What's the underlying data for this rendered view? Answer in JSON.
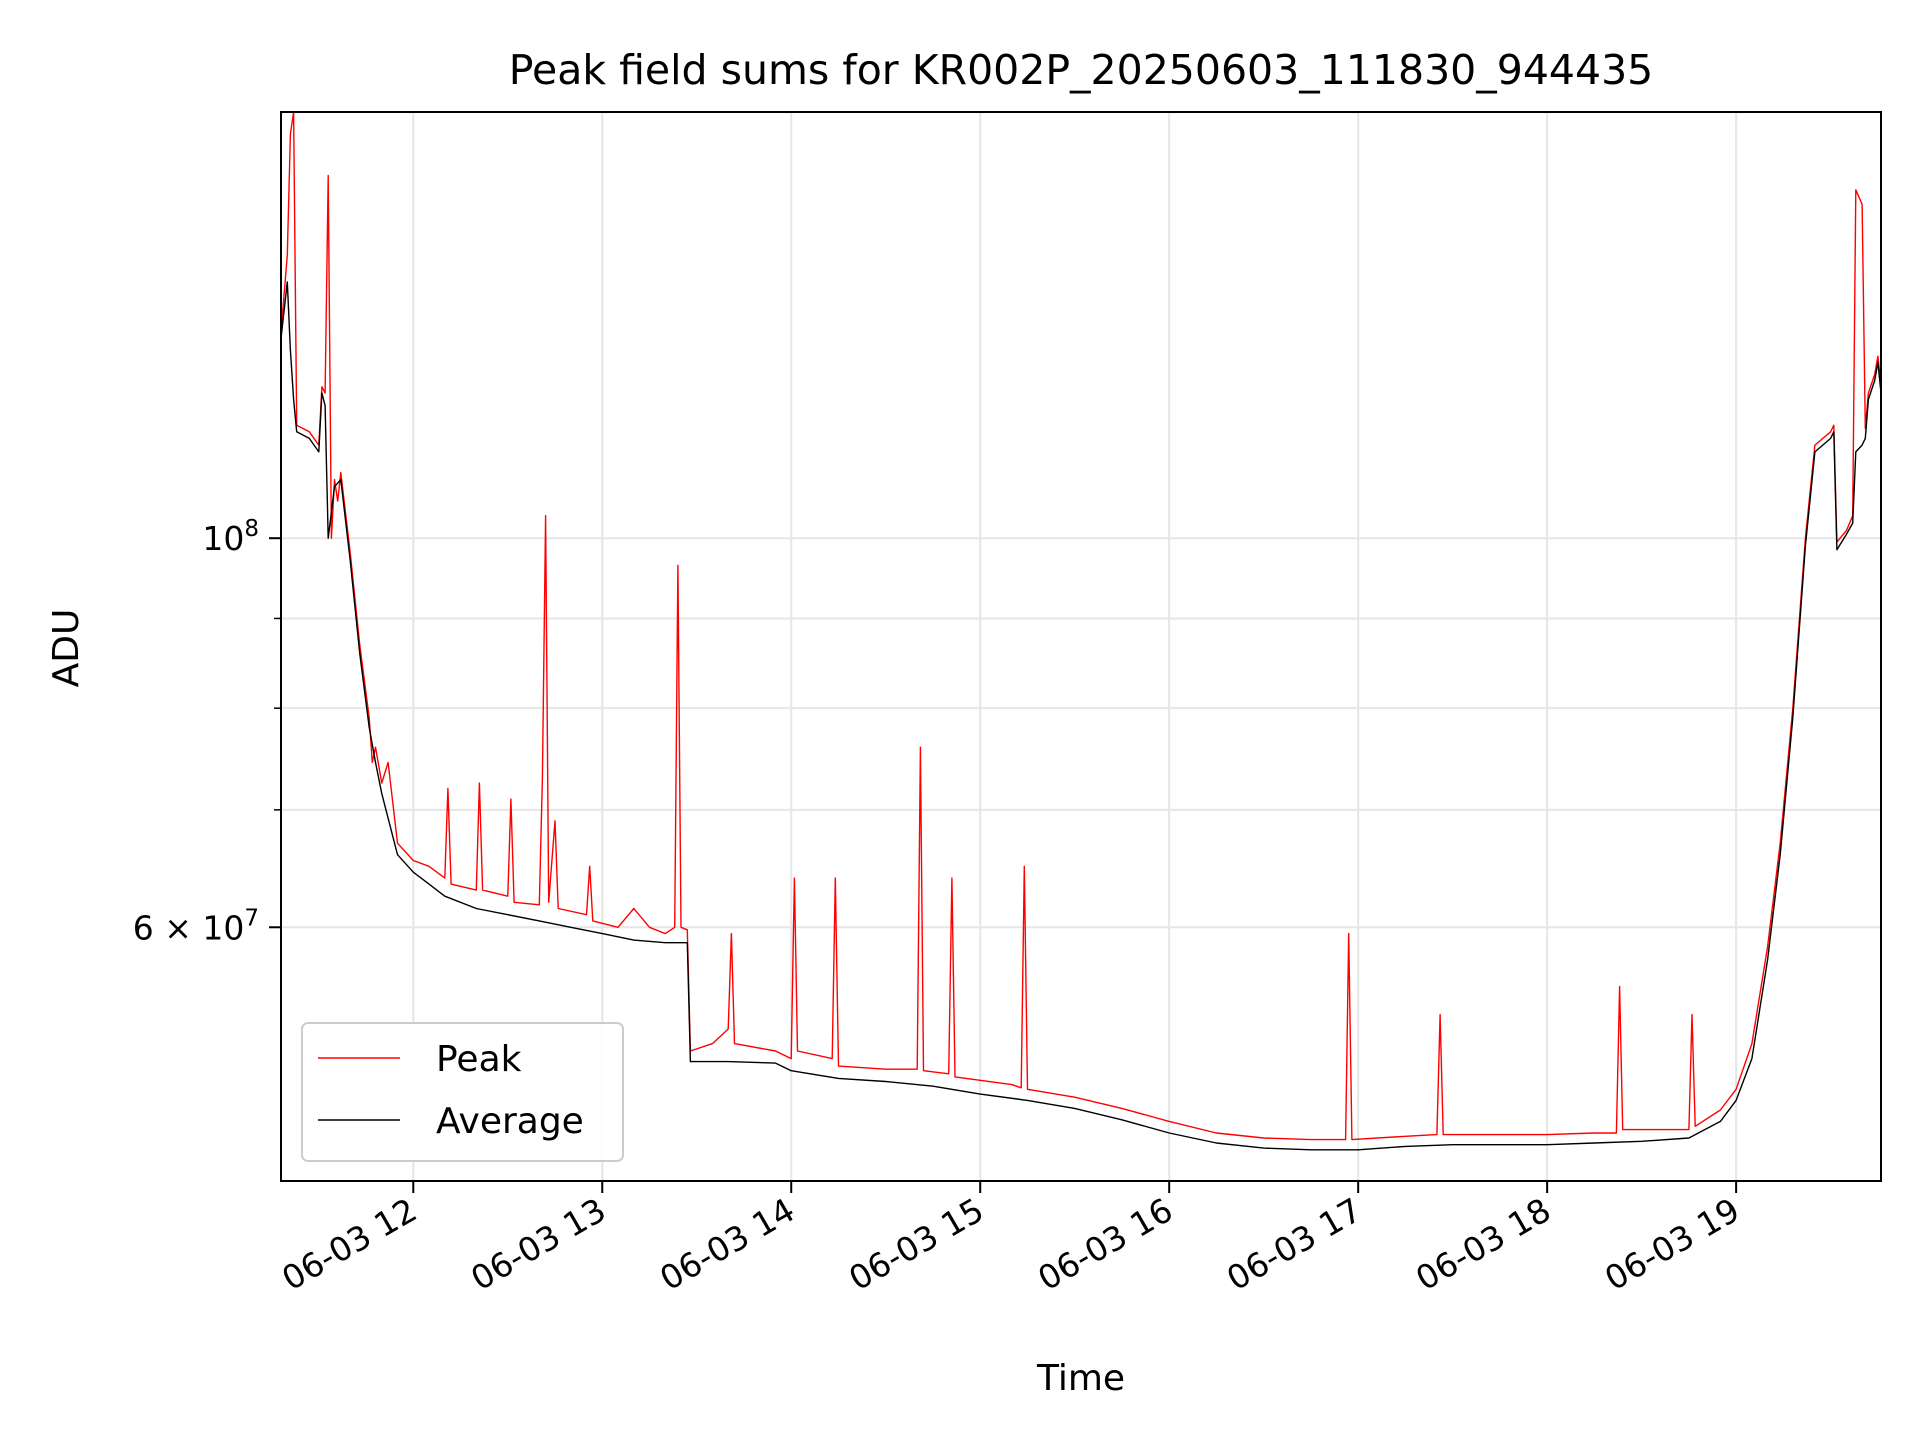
{
  "chart_data": {
    "type": "line",
    "title": "Peak field sums for KR002P_20250603_111830_944435",
    "xlabel": "Time",
    "ylabel": "ADU",
    "x_range": [
      "2025-06-03 11:18",
      "2025-06-03 19:46"
    ],
    "ylim": [
      43000000,
      175000000
    ],
    "yscale": "log",
    "grid": true,
    "legend_position": "lower-left",
    "x_ticks": [
      {
        "label": "06-03 12",
        "time": "2025-06-03 12:00"
      },
      {
        "label": "06-03 13",
        "time": "2025-06-03 13:00"
      },
      {
        "label": "06-03 14",
        "time": "2025-06-03 14:00"
      },
      {
        "label": "06-03 15",
        "time": "2025-06-03 15:00"
      },
      {
        "label": "06-03 16",
        "time": "2025-06-03 16:00"
      },
      {
        "label": "06-03 17",
        "time": "2025-06-03 17:00"
      },
      {
        "label": "06-03 18",
        "time": "2025-06-03 18:00"
      },
      {
        "label": "06-03 19",
        "time": "2025-06-03 19:00"
      }
    ],
    "y_ticks": [
      {
        "value": 100000000,
        "base": "10",
        "exp": "8",
        "coef": ""
      },
      {
        "value": 60000000,
        "base": "10",
        "exp": "7",
        "coef": "6 × "
      }
    ],
    "y_minor_ticks": [
      70000000,
      80000000,
      90000000
    ],
    "series": [
      {
        "name": "Peak",
        "color": "#ff0000",
        "points": [
          [
            "2025-06-03 11:18",
            131000000
          ],
          [
            "2025-06-03 11:20",
            145000000
          ],
          [
            "2025-06-03 11:21",
            170000000
          ],
          [
            "2025-06-03 11:22",
            175000000
          ],
          [
            "2025-06-03 11:23",
            116000000
          ],
          [
            "2025-06-03 11:27",
            115000000
          ],
          [
            "2025-06-03 11:30",
            113000000
          ],
          [
            "2025-06-03 11:31",
            122000000
          ],
          [
            "2025-06-03 11:32",
            121000000
          ],
          [
            "2025-06-03 11:33",
            161000000
          ],
          [
            "2025-06-03 11:34",
            100000000
          ],
          [
            "2025-06-03 11:35",
            108000000
          ],
          [
            "2025-06-03 11:36",
            105000000
          ],
          [
            "2025-06-03 11:37",
            109000000
          ],
          [
            "2025-06-03 11:40",
            98000000
          ],
          [
            "2025-06-03 11:43",
            87000000
          ],
          [
            "2025-06-03 11:46",
            79000000
          ],
          [
            "2025-06-03 11:47",
            74500000
          ],
          [
            "2025-06-03 11:48",
            76000000
          ],
          [
            "2025-06-03 11:50",
            72500000
          ],
          [
            "2025-06-03 11:52",
            74500000
          ],
          [
            "2025-06-03 11:55",
            67000000
          ],
          [
            "2025-06-03 12:00",
            65500000
          ],
          [
            "2025-06-03 12:05",
            65000000
          ],
          [
            "2025-06-03 12:10",
            64000000
          ],
          [
            "2025-06-03 12:11",
            72000000
          ],
          [
            "2025-06-03 12:12",
            63500000
          ],
          [
            "2025-06-03 12:20",
            63000000
          ],
          [
            "2025-06-03 12:21",
            72500000
          ],
          [
            "2025-06-03 12:22",
            63000000
          ],
          [
            "2025-06-03 12:30",
            62500000
          ],
          [
            "2025-06-03 12:31",
            71000000
          ],
          [
            "2025-06-03 12:32",
            62000000
          ],
          [
            "2025-06-03 12:40",
            61800000
          ],
          [
            "2025-06-03 12:41",
            73000000
          ],
          [
            "2025-06-03 12:42",
            103000000
          ],
          [
            "2025-06-03 12:43",
            62000000
          ],
          [
            "2025-06-03 12:45",
            69000000
          ],
          [
            "2025-06-03 12:46",
            61500000
          ],
          [
            "2025-06-03 12:55",
            61000000
          ],
          [
            "2025-06-03 12:56",
            65000000
          ],
          [
            "2025-06-03 12:57",
            60500000
          ],
          [
            "2025-06-03 13:05",
            60000000
          ],
          [
            "2025-06-03 13:10",
            61500000
          ],
          [
            "2025-06-03 13:15",
            60000000
          ],
          [
            "2025-06-03 13:20",
            59500000
          ],
          [
            "2025-06-03 13:23",
            60000000
          ],
          [
            "2025-06-03 13:24",
            96500000
          ],
          [
            "2025-06-03 13:25",
            60000000
          ],
          [
            "2025-06-03 13:27",
            59800000
          ],
          [
            "2025-06-03 13:28",
            51000000
          ],
          [
            "2025-06-03 13:35",
            51500000
          ],
          [
            "2025-06-03 13:40",
            52500000
          ],
          [
            "2025-06-03 13:41",
            59500000
          ],
          [
            "2025-06-03 13:42",
            51500000
          ],
          [
            "2025-06-03 13:55",
            51000000
          ],
          [
            "2025-06-03 14:00",
            50500000
          ],
          [
            "2025-06-03 14:01",
            64000000
          ],
          [
            "2025-06-03 14:02",
            51000000
          ],
          [
            "2025-06-03 14:13",
            50500000
          ],
          [
            "2025-06-03 14:14",
            64000000
          ],
          [
            "2025-06-03 14:15",
            50000000
          ],
          [
            "2025-06-03 14:30",
            49800000
          ],
          [
            "2025-06-03 14:40",
            49800000
          ],
          [
            "2025-06-03 14:41",
            76000000
          ],
          [
            "2025-06-03 14:42",
            49700000
          ],
          [
            "2025-06-03 14:50",
            49500000
          ],
          [
            "2025-06-03 14:51",
            64000000
          ],
          [
            "2025-06-03 14:52",
            49300000
          ],
          [
            "2025-06-03 15:10",
            48800000
          ],
          [
            "2025-06-03 15:13",
            48600000
          ],
          [
            "2025-06-03 15:14",
            65000000
          ],
          [
            "2025-06-03 15:15",
            48500000
          ],
          [
            "2025-06-03 15:30",
            48000000
          ],
          [
            "2025-06-03 15:45",
            47300000
          ],
          [
            "2025-06-03 16:00",
            46500000
          ],
          [
            "2025-06-03 16:15",
            45800000
          ],
          [
            "2025-06-03 16:30",
            45500000
          ],
          [
            "2025-06-03 16:45",
            45400000
          ],
          [
            "2025-06-03 16:56",
            45400000
          ],
          [
            "2025-06-03 16:57",
            59500000
          ],
          [
            "2025-06-03 16:58",
            45400000
          ],
          [
            "2025-06-03 17:15",
            45600000
          ],
          [
            "2025-06-03 17:25",
            45700000
          ],
          [
            "2025-06-03 17:26",
            53500000
          ],
          [
            "2025-06-03 17:27",
            45700000
          ],
          [
            "2025-06-03 17:45",
            45700000
          ],
          [
            "2025-06-03 18:00",
            45700000
          ],
          [
            "2025-06-03 18:15",
            45800000
          ],
          [
            "2025-06-03 18:22",
            45800000
          ],
          [
            "2025-06-03 18:23",
            55500000
          ],
          [
            "2025-06-03 18:24",
            46000000
          ],
          [
            "2025-06-03 18:45",
            46000000
          ],
          [
            "2025-06-03 18:46",
            53500000
          ],
          [
            "2025-06-03 18:47",
            46200000
          ],
          [
            "2025-06-03 18:55",
            47200000
          ],
          [
            "2025-06-03 19:00",
            48500000
          ],
          [
            "2025-06-03 19:05",
            51500000
          ],
          [
            "2025-06-03 19:10",
            58500000
          ],
          [
            "2025-06-03 19:14",
            67000000
          ],
          [
            "2025-06-03 19:18",
            80000000
          ],
          [
            "2025-06-03 19:22",
            100000000
          ],
          [
            "2025-06-03 19:25",
            113000000
          ],
          [
            "2025-06-03 19:30",
            115000000
          ],
          [
            "2025-06-03 19:31",
            116000000
          ],
          [
            "2025-06-03 19:32",
            99500000
          ],
          [
            "2025-06-03 19:35",
            101000000
          ],
          [
            "2025-06-03 19:37",
            103000000
          ],
          [
            "2025-06-03 19:38",
            158000000
          ],
          [
            "2025-06-03 19:40",
            155000000
          ],
          [
            "2025-06-03 19:41",
            115500000
          ],
          [
            "2025-06-03 19:42",
            121000000
          ],
          [
            "2025-06-03 19:44",
            124000000
          ],
          [
            "2025-06-03 19:45",
            127000000
          ],
          [
            "2025-06-03 19:46",
            122000000
          ]
        ]
      },
      {
        "name": "Average",
        "color": "#000000",
        "points": [
          [
            "2025-06-03 11:18",
            130000000
          ],
          [
            "2025-06-03 11:20",
            140000000
          ],
          [
            "2025-06-03 11:21",
            128000000
          ],
          [
            "2025-06-03 11:22",
            120000000
          ],
          [
            "2025-06-03 11:23",
            115000000
          ],
          [
            "2025-06-03 11:27",
            114000000
          ],
          [
            "2025-06-03 11:30",
            112000000
          ],
          [
            "2025-06-03 11:31",
            121000000
          ],
          [
            "2025-06-03 11:32",
            119000000
          ],
          [
            "2025-06-03 11:33",
            100000000
          ],
          [
            "2025-06-03 11:35",
            107000000
          ],
          [
            "2025-06-03 11:37",
            108000000
          ],
          [
            "2025-06-03 11:40",
            97000000
          ],
          [
            "2025-06-03 11:43",
            86000000
          ],
          [
            "2025-06-03 11:46",
            78000000
          ],
          [
            "2025-06-03 11:48",
            74500000
          ],
          [
            "2025-06-03 11:50",
            71500000
          ],
          [
            "2025-06-03 11:55",
            66000000
          ],
          [
            "2025-06-03 12:00",
            64500000
          ],
          [
            "2025-06-03 12:05",
            63500000
          ],
          [
            "2025-06-03 12:10",
            62500000
          ],
          [
            "2025-06-03 12:20",
            61500000
          ],
          [
            "2025-06-03 12:30",
            61000000
          ],
          [
            "2025-06-03 12:40",
            60500000
          ],
          [
            "2025-06-03 12:50",
            60000000
          ],
          [
            "2025-06-03 13:00",
            59500000
          ],
          [
            "2025-06-03 13:10",
            59000000
          ],
          [
            "2025-06-03 13:20",
            58800000
          ],
          [
            "2025-06-03 13:27",
            58800000
          ],
          [
            "2025-06-03 13:28",
            50300000
          ],
          [
            "2025-06-03 13:40",
            50300000
          ],
          [
            "2025-06-03 13:55",
            50200000
          ],
          [
            "2025-06-03 14:00",
            49700000
          ],
          [
            "2025-06-03 14:15",
            49200000
          ],
          [
            "2025-06-03 14:30",
            49000000
          ],
          [
            "2025-06-03 14:45",
            48700000
          ],
          [
            "2025-06-03 15:00",
            48200000
          ],
          [
            "2025-06-03 15:15",
            47800000
          ],
          [
            "2025-06-03 15:30",
            47300000
          ],
          [
            "2025-06-03 15:45",
            46600000
          ],
          [
            "2025-06-03 16:00",
            45800000
          ],
          [
            "2025-06-03 16:15",
            45200000
          ],
          [
            "2025-06-03 16:30",
            44900000
          ],
          [
            "2025-06-03 16:45",
            44800000
          ],
          [
            "2025-06-03 17:00",
            44800000
          ],
          [
            "2025-06-03 17:15",
            45000000
          ],
          [
            "2025-06-03 17:30",
            45100000
          ],
          [
            "2025-06-03 17:45",
            45100000
          ],
          [
            "2025-06-03 18:00",
            45100000
          ],
          [
            "2025-06-03 18:15",
            45200000
          ],
          [
            "2025-06-03 18:30",
            45300000
          ],
          [
            "2025-06-03 18:45",
            45500000
          ],
          [
            "2025-06-03 18:55",
            46500000
          ],
          [
            "2025-06-03 19:00",
            47800000
          ],
          [
            "2025-06-03 19:05",
            50500000
          ],
          [
            "2025-06-03 19:10",
            57500000
          ],
          [
            "2025-06-03 19:14",
            66000000
          ],
          [
            "2025-06-03 19:18",
            79000000
          ],
          [
            "2025-06-03 19:22",
            99000000
          ],
          [
            "2025-06-03 19:25",
            112000000
          ],
          [
            "2025-06-03 19:30",
            114000000
          ],
          [
            "2025-06-03 19:31",
            115000000
          ],
          [
            "2025-06-03 19:32",
            98500000
          ],
          [
            "2025-06-03 19:35",
            100500000
          ],
          [
            "2025-06-03 19:37",
            102000000
          ],
          [
            "2025-06-03 19:38",
            112000000
          ],
          [
            "2025-06-03 19:40",
            113000000
          ],
          [
            "2025-06-03 19:41",
            114000000
          ],
          [
            "2025-06-03 19:42",
            120000000
          ],
          [
            "2025-06-03 19:44",
            123000000
          ],
          [
            "2025-06-03 19:45",
            126000000
          ],
          [
            "2025-06-03 19:46",
            121000000
          ]
        ]
      }
    ]
  }
}
